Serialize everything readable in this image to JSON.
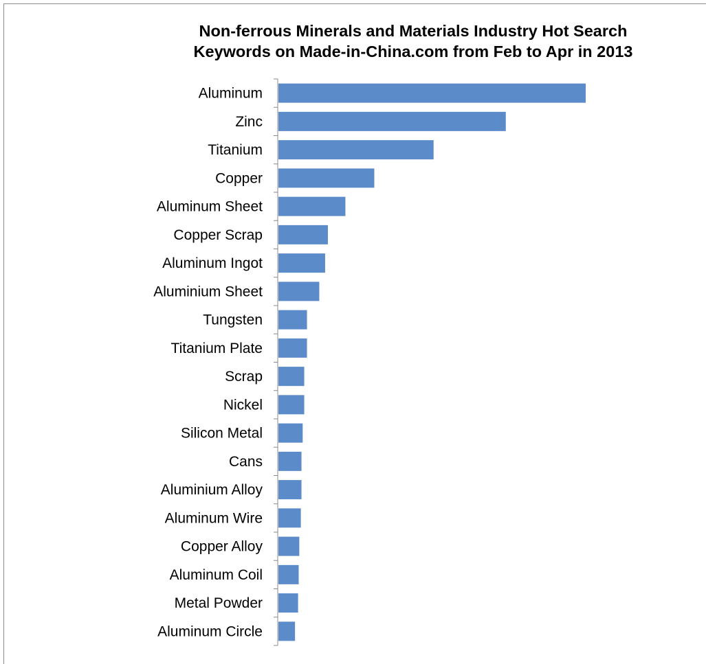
{
  "chart_data": {
    "type": "bar",
    "orientation": "horizontal",
    "title": "Non-ferrous Minerals and Materials Industry Hot Search Keywords on Made-in-China.com from Feb to Apr in 2013",
    "title_lines": [
      "Non-ferrous Minerals and Materials Industry Hot Search",
      "Keywords on Made-in-China.com from Feb to Apr in 2013"
    ],
    "xlabel": "",
    "ylabel": "",
    "categories": [
      "Aluminum",
      "Zinc",
      "Titanium",
      "Copper",
      "Aluminum Sheet",
      "Copper Scrap",
      "Aluminum Ingot",
      "Aluminium Sheet",
      "Tungsten",
      "Titanium Plate",
      "Scrap",
      "Nickel",
      "Silicon Metal",
      "Cans",
      "Aluminium Alloy",
      "Aluminum Wire",
      "Copper Alloy",
      "Aluminum Coil",
      "Metal Powder",
      "Aluminum Circle"
    ],
    "values": [
      100,
      74,
      50.5,
      31.2,
      21.8,
      16.1,
      15.2,
      13.3,
      9.3,
      9.3,
      8.4,
      8.4,
      7.9,
      7.5,
      7.5,
      7.3,
      6.8,
      6.6,
      6.4,
      5.4
    ],
    "xlim": [
      0,
      100
    ],
    "x_axis_visible": false,
    "grid": false,
    "legend": "none",
    "bar_color": "#5b8bc9",
    "axis_color": "#888888"
  }
}
